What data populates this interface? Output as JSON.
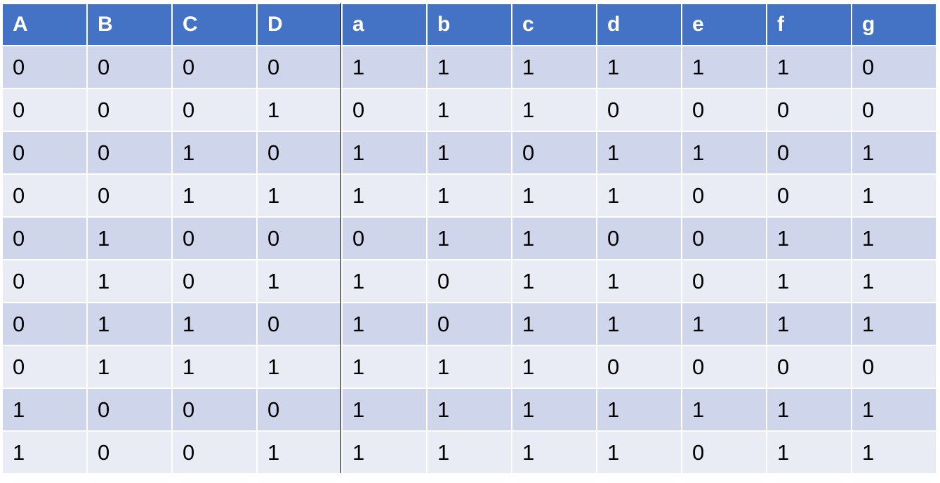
{
  "table": {
    "headers": [
      "A",
      "B",
      "C",
      "D",
      "a",
      "b",
      "c",
      "d",
      "e",
      "f",
      "g"
    ],
    "rows": [
      [
        "0",
        "0",
        "0",
        "0",
        "1",
        "1",
        "1",
        "1",
        "1",
        "1",
        "0"
      ],
      [
        "0",
        "0",
        "0",
        "1",
        "0",
        "1",
        "1",
        "0",
        "0",
        "0",
        "0"
      ],
      [
        "0",
        "0",
        "1",
        "0",
        "1",
        "1",
        "0",
        "1",
        "1",
        "0",
        "1"
      ],
      [
        "0",
        "0",
        "1",
        "1",
        "1",
        "1",
        "1",
        "1",
        "0",
        "0",
        "1"
      ],
      [
        "0",
        "1",
        "0",
        "0",
        "0",
        "1",
        "1",
        "0",
        "0",
        "1",
        "1"
      ],
      [
        "0",
        "1",
        "0",
        "1",
        "1",
        "0",
        "1",
        "1",
        "0",
        "1",
        "1"
      ],
      [
        "0",
        "1",
        "1",
        "0",
        "1",
        "0",
        "1",
        "1",
        "1",
        "1",
        "1"
      ],
      [
        "0",
        "1",
        "1",
        "1",
        "1",
        "1",
        "1",
        "0",
        "0",
        "0",
        "0"
      ],
      [
        "1",
        "0",
        "0",
        "0",
        "1",
        "1",
        "1",
        "1",
        "1",
        "1",
        "1"
      ],
      [
        "1",
        "0",
        "0",
        "1",
        "1",
        "1",
        "1",
        "1",
        "0",
        "1",
        "1"
      ]
    ]
  },
  "colors": {
    "header_background": "#4472c4",
    "header_text": "#ffffff",
    "row_odd_background": "#cfd5ea",
    "row_even_background": "#e9ebf5",
    "divider": "#000000"
  }
}
